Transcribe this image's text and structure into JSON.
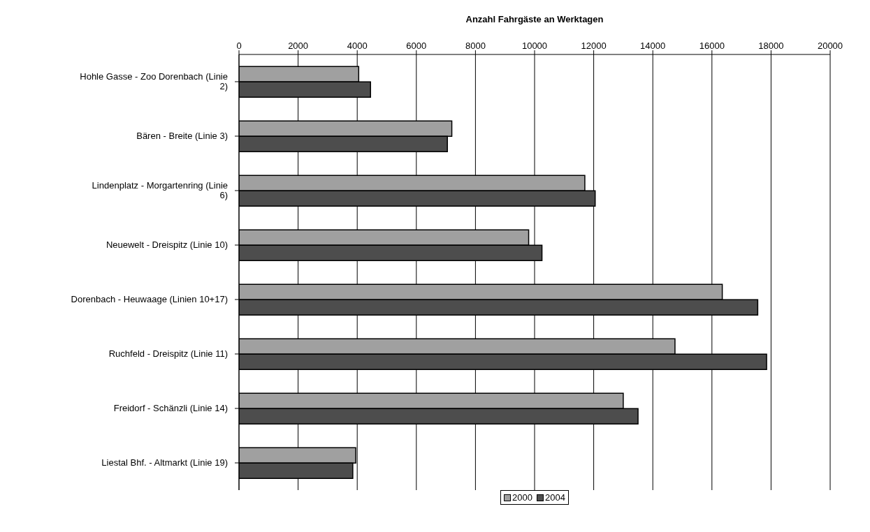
{
  "chart_data": {
    "type": "bar",
    "orientation": "horizontal",
    "xlabel": "Anzahl Fahrgäste an Werktagen",
    "categories": [
      "Hohle Gasse - Zoo Dorenbach (Linie 2)",
      "Bären - Breite (Linie 3)",
      "Lindenplatz - Morgartenring (Linie 6)",
      "Neuewelt - Dreispitz (Linie 10)",
      "Dorenbach - Heuwaage (Linien 10+17)",
      "Ruchfeld - Dreispitz (Linie 11)",
      "Freidorf - Schänzli (Linie 14)",
      "Liestal Bhf. - Altmarkt (Linie 19)"
    ],
    "series": [
      {
        "name": "2000",
        "color": "#a0a0a0",
        "values": [
          4050,
          7200,
          11700,
          9800,
          16350,
          14750,
          13000,
          3950
        ]
      },
      {
        "name": "2004",
        "color": "#4d4d4d",
        "values": [
          4450,
          7050,
          12050,
          10250,
          17550,
          17850,
          13500,
          3850
        ]
      }
    ],
    "xlim": [
      0,
      20000
    ],
    "xticks": [
      0,
      2000,
      4000,
      6000,
      8000,
      10000,
      12000,
      14000,
      16000,
      18000,
      20000
    ],
    "grid": "x",
    "legend": "bottom"
  }
}
